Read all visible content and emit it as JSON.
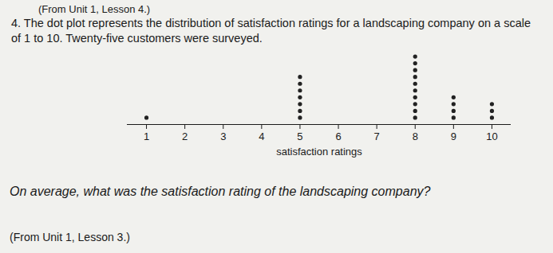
{
  "header": "(From Unit 1, Lesson 4.)",
  "question": "4. The dot plot represents the distribution of satisfaction ratings for a landscaping company on a scale of 1 to 10. Twenty-five customers were surveyed.",
  "chart_data": {
    "type": "dot",
    "x_label": "satisfaction ratings",
    "x": [
      1,
      5,
      8,
      9,
      10
    ],
    "values": [
      1,
      7,
      10,
      4,
      3
    ],
    "xlim": [
      0.5,
      10.5
    ],
    "xticks": [
      1,
      2,
      3,
      4,
      5,
      6,
      7,
      8,
      9,
      10
    ],
    "tick_labels": "x",
    "color": "#222222"
  },
  "prompt": "On average, what was the satisfaction rating of the landscaping company?",
  "footer": "(From Unit 1, Lesson 3.)"
}
